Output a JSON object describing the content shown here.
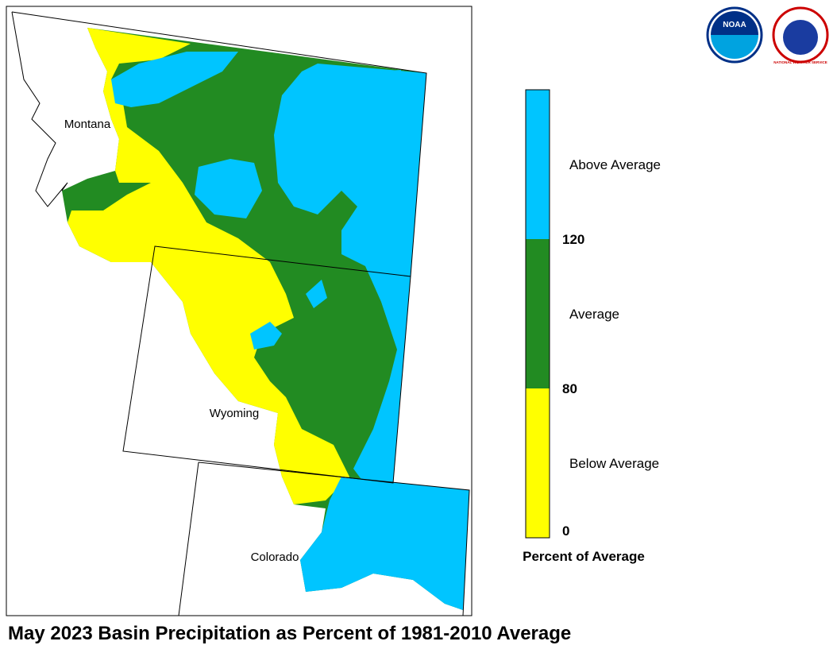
{
  "title": "May 2023 Basin Precipitation as Percent of 1981-2010 Average",
  "states": [
    "Montana",
    "Wyoming",
    "Colorado"
  ],
  "logos": {
    "noaa": "NOAA",
    "nws": "NATIONAL WEATHER SERVICE"
  },
  "legend": {
    "title": "Percent of Average",
    "breaks": [
      0,
      80,
      120
    ],
    "classes": [
      {
        "label": "Below Average",
        "color": "#ffff00"
      },
      {
        "label": "Average",
        "color": "#228b22"
      },
      {
        "label": "Above Average",
        "color": "#00c5ff"
      }
    ]
  }
}
